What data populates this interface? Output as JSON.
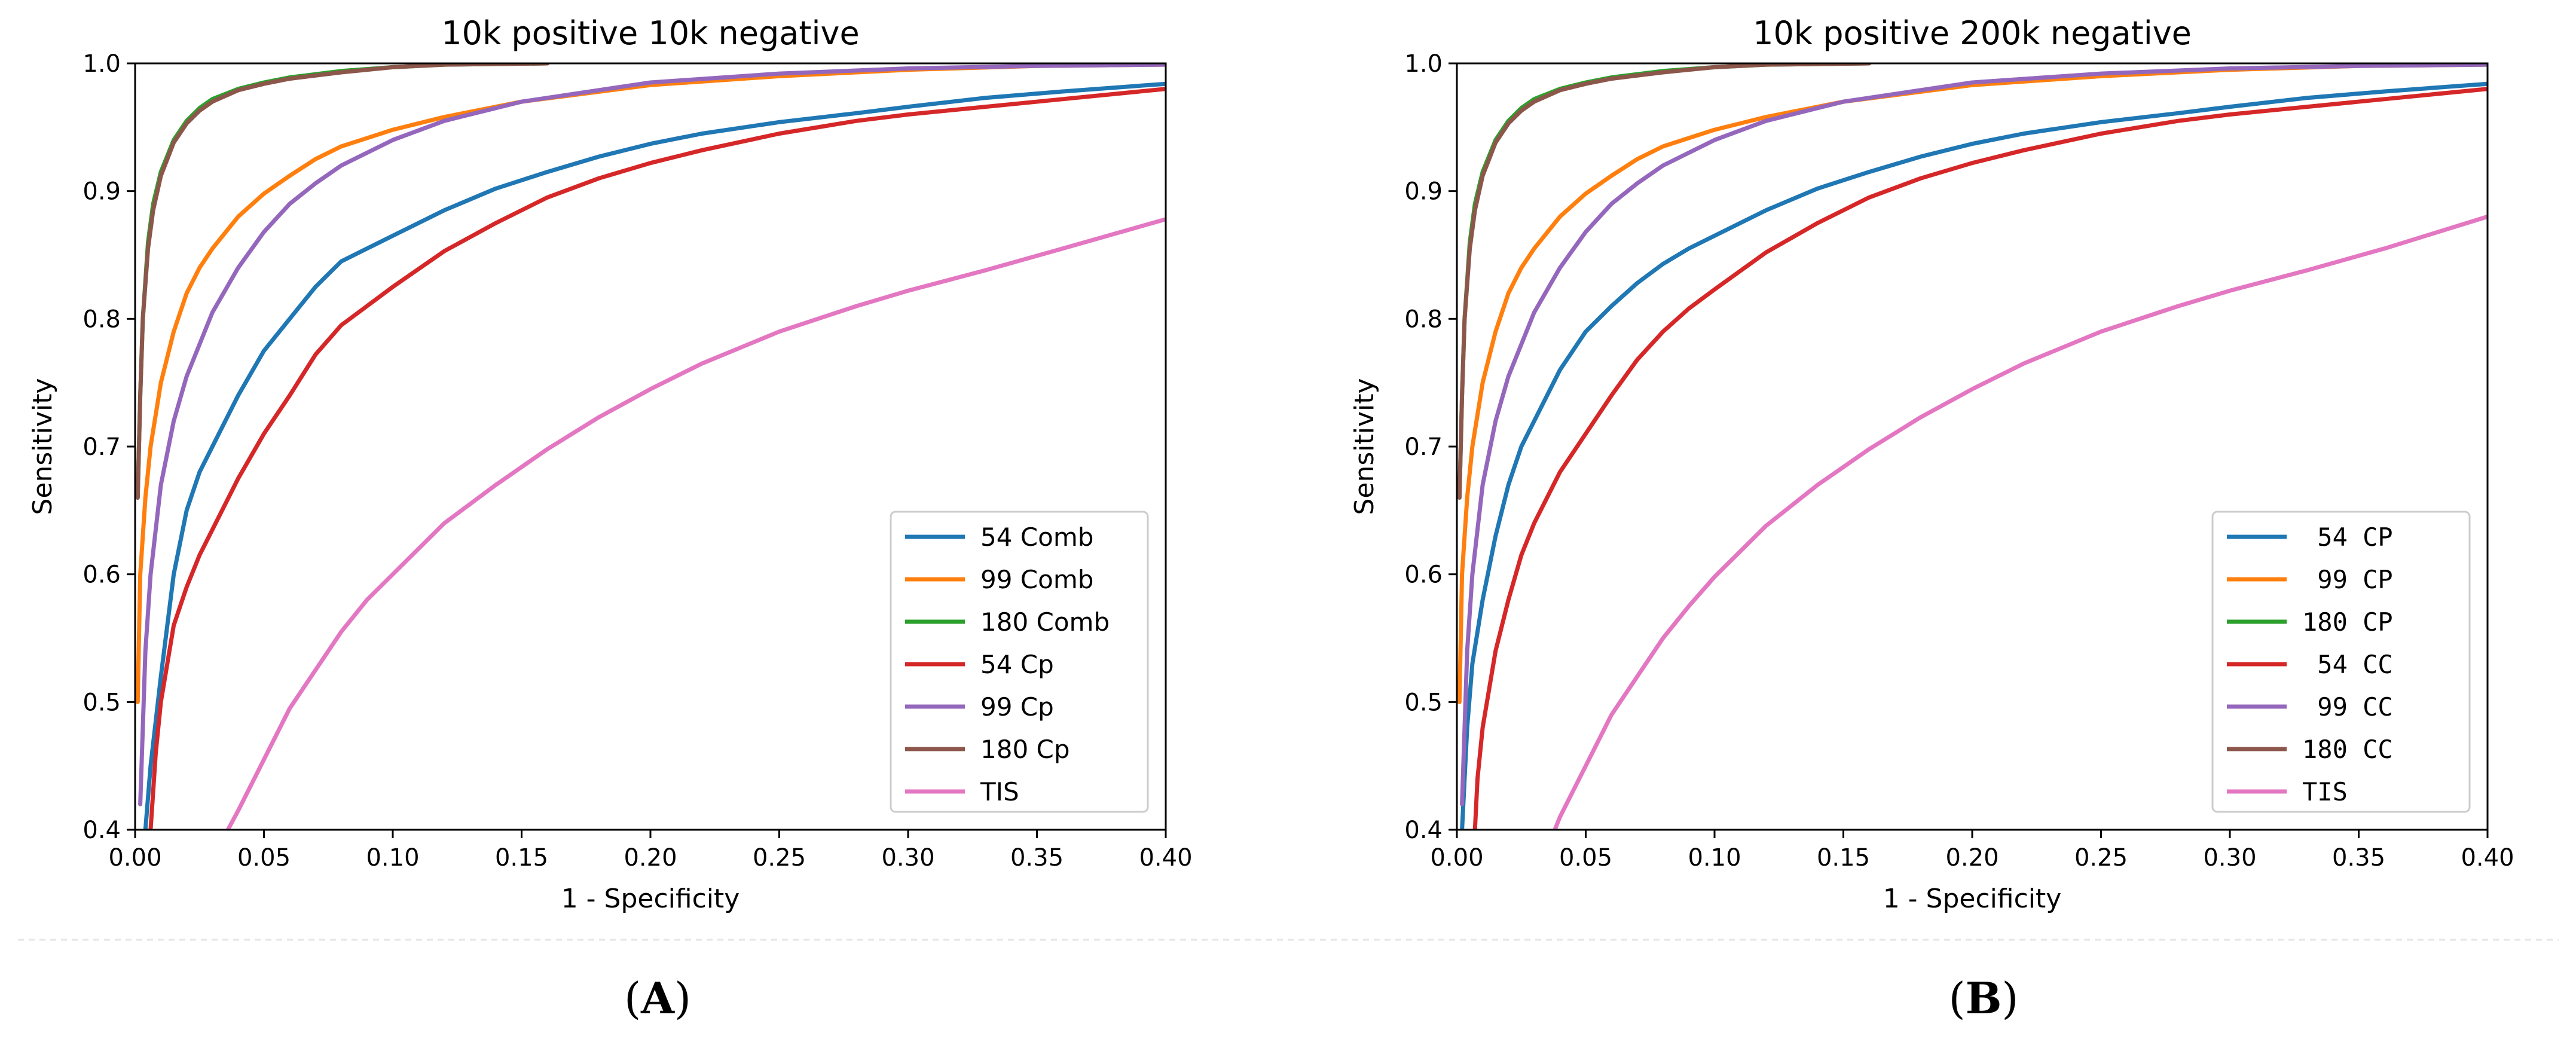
{
  "chart_data": [
    {
      "type": "line",
      "panel_label": "A",
      "title": "10k positive 10k negative",
      "xlabel": "1 - Specificity",
      "ylabel": "Sensitivity",
      "xlim": [
        0.0,
        0.4
      ],
      "ylim": [
        0.4,
        1.0
      ],
      "xticks": [
        "0.00",
        "0.05",
        "0.10",
        "0.15",
        "0.20",
        "0.25",
        "0.30",
        "0.35",
        "0.40"
      ],
      "yticks": [
        "0.4",
        "0.5",
        "0.6",
        "0.7",
        "0.8",
        "0.9",
        "1.0"
      ],
      "legend_position": "lower-right",
      "legend_monospace": false,
      "series": [
        {
          "name": "54 Comb",
          "color": "#1f77b4",
          "x": [
            0.004,
            0.006,
            0.01,
            0.015,
            0.02,
            0.025,
            0.03,
            0.04,
            0.05,
            0.06,
            0.07,
            0.08,
            0.09,
            0.1,
            0.12,
            0.14,
            0.16,
            0.18,
            0.2,
            0.22,
            0.25,
            0.28,
            0.3,
            0.33,
            0.36,
            0.4
          ],
          "y": [
            0.4,
            0.45,
            0.52,
            0.6,
            0.65,
            0.68,
            0.7,
            0.74,
            0.775,
            0.8,
            0.825,
            0.845,
            0.855,
            0.865,
            0.885,
            0.902,
            0.915,
            0.927,
            0.937,
            0.945,
            0.954,
            0.961,
            0.966,
            0.973,
            0.978,
            0.984
          ]
        },
        {
          "name": "99 Comb",
          "color": "#ff7f0e",
          "x": [
            0.001,
            0.002,
            0.004,
            0.006,
            0.01,
            0.015,
            0.02,
            0.025,
            0.03,
            0.04,
            0.05,
            0.06,
            0.07,
            0.08,
            0.1,
            0.12,
            0.15,
            0.2,
            0.25,
            0.3,
            0.35,
            0.4
          ],
          "y": [
            0.5,
            0.6,
            0.66,
            0.7,
            0.75,
            0.79,
            0.82,
            0.84,
            0.855,
            0.88,
            0.898,
            0.912,
            0.925,
            0.935,
            0.948,
            0.958,
            0.97,
            0.983,
            0.99,
            0.995,
            0.998,
            0.999
          ]
        },
        {
          "name": "180 Comb",
          "color": "#2ca02c",
          "x": [
            0.001,
            0.002,
            0.003,
            0.005,
            0.007,
            0.01,
            0.015,
            0.02,
            0.025,
            0.03,
            0.04,
            0.05,
            0.06,
            0.08,
            0.1,
            0.12,
            0.16
          ],
          "y": [
            0.66,
            0.74,
            0.8,
            0.86,
            0.89,
            0.915,
            0.94,
            0.955,
            0.965,
            0.972,
            0.98,
            0.985,
            0.989,
            0.994,
            0.997,
            0.999,
            1.0
          ]
        },
        {
          "name": "54 Cp",
          "color": "#d62728",
          "x": [
            0.006,
            0.008,
            0.01,
            0.015,
            0.02,
            0.025,
            0.03,
            0.04,
            0.05,
            0.06,
            0.07,
            0.08,
            0.09,
            0.1,
            0.12,
            0.14,
            0.16,
            0.18,
            0.2,
            0.22,
            0.25,
            0.28,
            0.3,
            0.33,
            0.36,
            0.4
          ],
          "y": [
            0.4,
            0.46,
            0.5,
            0.56,
            0.59,
            0.615,
            0.635,
            0.675,
            0.71,
            0.74,
            0.772,
            0.795,
            0.81,
            0.825,
            0.853,
            0.875,
            0.895,
            0.91,
            0.922,
            0.932,
            0.945,
            0.955,
            0.96,
            0.966,
            0.972,
            0.98
          ]
        },
        {
          "name": "99 Cp",
          "color": "#9467bd",
          "x": [
            0.002,
            0.004,
            0.006,
            0.01,
            0.015,
            0.02,
            0.03,
            0.04,
            0.05,
            0.06,
            0.07,
            0.08,
            0.1,
            0.12,
            0.15,
            0.2,
            0.25,
            0.3,
            0.35,
            0.4
          ],
          "y": [
            0.42,
            0.54,
            0.6,
            0.67,
            0.72,
            0.755,
            0.805,
            0.84,
            0.868,
            0.89,
            0.906,
            0.92,
            0.94,
            0.955,
            0.97,
            0.985,
            0.992,
            0.996,
            0.998,
            0.999
          ]
        },
        {
          "name": "180 Cp",
          "color": "#8c564b",
          "x": [
            0.001,
            0.002,
            0.003,
            0.005,
            0.007,
            0.01,
            0.015,
            0.02,
            0.025,
            0.03,
            0.04,
            0.05,
            0.06,
            0.08,
            0.1,
            0.12,
            0.16
          ],
          "y": [
            0.66,
            0.74,
            0.8,
            0.855,
            0.885,
            0.912,
            0.938,
            0.953,
            0.963,
            0.97,
            0.979,
            0.984,
            0.988,
            0.993,
            0.997,
            0.999,
            1.0
          ]
        },
        {
          "name": "TIS",
          "color": "#e377c2",
          "x": [
            0.036,
            0.04,
            0.05,
            0.06,
            0.07,
            0.08,
            0.09,
            0.1,
            0.12,
            0.14,
            0.16,
            0.18,
            0.2,
            0.22,
            0.25,
            0.28,
            0.3,
            0.33,
            0.36,
            0.4
          ],
          "y": [
            0.4,
            0.415,
            0.455,
            0.495,
            0.525,
            0.555,
            0.58,
            0.6,
            0.64,
            0.67,
            0.698,
            0.723,
            0.745,
            0.765,
            0.79,
            0.81,
            0.822,
            0.838,
            0.855,
            0.878
          ]
        }
      ]
    },
    {
      "type": "line",
      "panel_label": "B",
      "title": "10k positive 200k negative",
      "xlabel": "1 - Specificity",
      "ylabel": "Sensitivity",
      "xlim": [
        0.0,
        0.4
      ],
      "ylim": [
        0.4,
        1.0
      ],
      "xticks": [
        "0.00",
        "0.05",
        "0.10",
        "0.15",
        "0.20",
        "0.25",
        "0.30",
        "0.35",
        "0.40"
      ],
      "yticks": [
        "0.4",
        "0.5",
        "0.6",
        "0.7",
        "0.8",
        "0.9",
        "1.0"
      ],
      "legend_position": "lower-right",
      "legend_monospace": true,
      "series": [
        {
          "name": " 54 CP",
          "color": "#1f77b4",
          "x": [
            0.002,
            0.004,
            0.006,
            0.01,
            0.015,
            0.02,
            0.025,
            0.03,
            0.04,
            0.05,
            0.06,
            0.07,
            0.08,
            0.09,
            0.1,
            0.12,
            0.14,
            0.16,
            0.18,
            0.2,
            0.22,
            0.25,
            0.28,
            0.3,
            0.33,
            0.36,
            0.4
          ],
          "y": [
            0.4,
            0.48,
            0.53,
            0.58,
            0.63,
            0.67,
            0.7,
            0.72,
            0.76,
            0.79,
            0.81,
            0.828,
            0.843,
            0.855,
            0.865,
            0.885,
            0.902,
            0.915,
            0.927,
            0.937,
            0.945,
            0.954,
            0.961,
            0.966,
            0.973,
            0.978,
            0.984
          ]
        },
        {
          "name": " 99 CP",
          "color": "#ff7f0e",
          "x": [
            0.001,
            0.002,
            0.004,
            0.006,
            0.01,
            0.015,
            0.02,
            0.025,
            0.03,
            0.04,
            0.05,
            0.06,
            0.07,
            0.08,
            0.1,
            0.12,
            0.15,
            0.2,
            0.25,
            0.3,
            0.35,
            0.4
          ],
          "y": [
            0.5,
            0.6,
            0.66,
            0.7,
            0.75,
            0.79,
            0.82,
            0.84,
            0.855,
            0.88,
            0.898,
            0.912,
            0.925,
            0.935,
            0.948,
            0.958,
            0.97,
            0.983,
            0.99,
            0.995,
            0.998,
            0.999
          ]
        },
        {
          "name": "180 CP",
          "color": "#2ca02c",
          "x": [
            0.001,
            0.002,
            0.003,
            0.005,
            0.007,
            0.01,
            0.015,
            0.02,
            0.025,
            0.03,
            0.04,
            0.05,
            0.06,
            0.08,
            0.1,
            0.12,
            0.16
          ],
          "y": [
            0.66,
            0.74,
            0.8,
            0.86,
            0.89,
            0.915,
            0.94,
            0.955,
            0.965,
            0.972,
            0.98,
            0.985,
            0.989,
            0.994,
            0.997,
            0.999,
            1.0
          ]
        },
        {
          "name": " 54 CC",
          "color": "#d62728",
          "x": [
            0.007,
            0.008,
            0.01,
            0.015,
            0.02,
            0.025,
            0.03,
            0.04,
            0.05,
            0.06,
            0.07,
            0.08,
            0.09,
            0.1,
            0.12,
            0.14,
            0.16,
            0.18,
            0.2,
            0.22,
            0.25,
            0.28,
            0.3,
            0.33,
            0.36,
            0.4
          ],
          "y": [
            0.4,
            0.44,
            0.48,
            0.54,
            0.58,
            0.615,
            0.64,
            0.68,
            0.71,
            0.74,
            0.768,
            0.79,
            0.808,
            0.823,
            0.852,
            0.875,
            0.895,
            0.91,
            0.922,
            0.932,
            0.945,
            0.955,
            0.96,
            0.966,
            0.972,
            0.98
          ]
        },
        {
          "name": " 99 CC",
          "color": "#9467bd",
          "x": [
            0.002,
            0.004,
            0.006,
            0.01,
            0.015,
            0.02,
            0.03,
            0.04,
            0.05,
            0.06,
            0.07,
            0.08,
            0.1,
            0.12,
            0.15,
            0.2,
            0.25,
            0.3,
            0.35,
            0.4
          ],
          "y": [
            0.42,
            0.54,
            0.6,
            0.67,
            0.72,
            0.755,
            0.805,
            0.84,
            0.868,
            0.89,
            0.906,
            0.92,
            0.94,
            0.955,
            0.97,
            0.985,
            0.992,
            0.996,
            0.998,
            0.999
          ]
        },
        {
          "name": "180 CC",
          "color": "#8c564b",
          "x": [
            0.001,
            0.002,
            0.003,
            0.005,
            0.007,
            0.01,
            0.015,
            0.02,
            0.025,
            0.03,
            0.04,
            0.05,
            0.06,
            0.08,
            0.1,
            0.12,
            0.16
          ],
          "y": [
            0.66,
            0.74,
            0.8,
            0.855,
            0.885,
            0.912,
            0.938,
            0.953,
            0.963,
            0.97,
            0.979,
            0.984,
            0.988,
            0.993,
            0.997,
            0.999,
            1.0
          ]
        },
        {
          "name": "TIS",
          "color": "#e377c2",
          "x": [
            0.038,
            0.04,
            0.05,
            0.06,
            0.07,
            0.08,
            0.09,
            0.1,
            0.12,
            0.14,
            0.16,
            0.18,
            0.2,
            0.22,
            0.25,
            0.28,
            0.3,
            0.33,
            0.36,
            0.4
          ],
          "y": [
            0.4,
            0.41,
            0.45,
            0.49,
            0.52,
            0.55,
            0.575,
            0.598,
            0.638,
            0.67,
            0.698,
            0.723,
            0.745,
            0.765,
            0.79,
            0.81,
            0.822,
            0.838,
            0.855,
            0.88
          ]
        }
      ]
    }
  ]
}
